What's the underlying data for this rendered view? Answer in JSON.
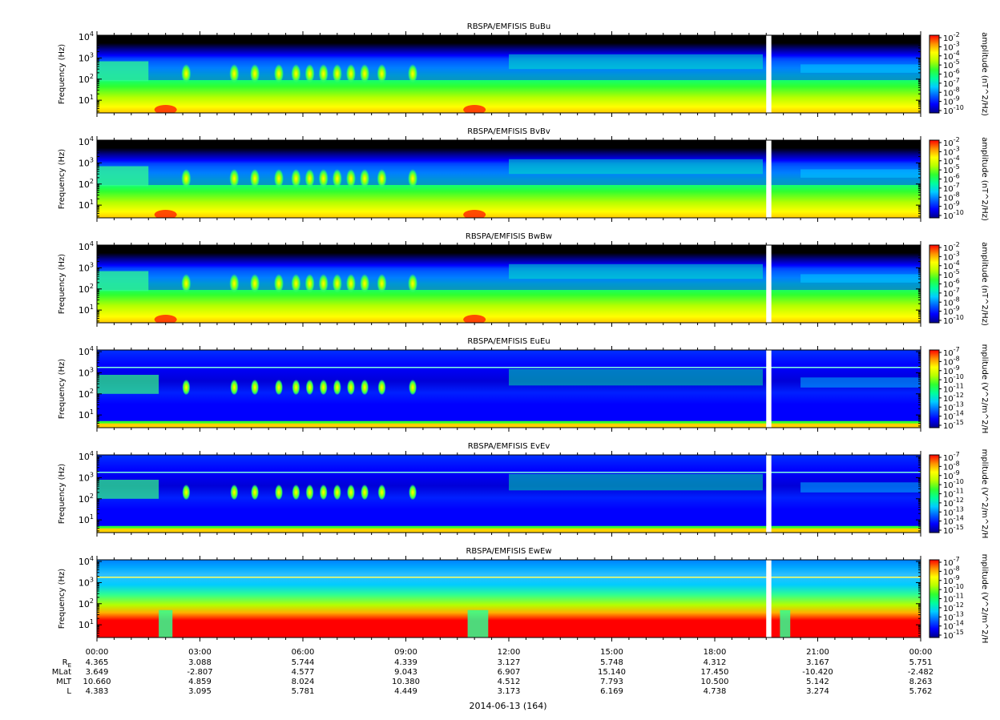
{
  "chart_data": {
    "type": "heatmap",
    "plot_type": "spectrogram",
    "x_axis": {
      "tick_labels": [
        "00:00",
        "03:00",
        "06:00",
        "09:00",
        "12:00",
        "15:00",
        "18:00",
        "21:00",
        "00:00"
      ],
      "range_hours": [
        0,
        24
      ],
      "minor_tick_step_hours": 0.5,
      "date_label": "2014-06-13 (164)"
    },
    "y_axis": {
      "label": "Frequency (Hz)",
      "scale": "log",
      "range_hz": [
        2.5,
        12000
      ],
      "tick_labels": [
        {
          "value": 10,
          "base": "10",
          "exp": "1"
        },
        {
          "value": 100,
          "base": "10",
          "exp": "2"
        },
        {
          "value": 1000,
          "base": "10",
          "exp": "3"
        },
        {
          "value": 10000,
          "base": "10",
          "exp": "4"
        }
      ]
    },
    "data_gap_hours": [
      19.5,
      19.65
    ],
    "ephemeris": {
      "rows": [
        {
          "label": "R",
          "sub": "E",
          "values": [
            "4.365",
            "3.088",
            "5.744",
            "4.339",
            "3.127",
            "5.748",
            "4.312",
            "3.167",
            "5.751"
          ]
        },
        {
          "label": "MLat",
          "sub": "",
          "values": [
            "3.649",
            "-2.807",
            "4.577",
            "9.043",
            "6.907",
            "15.140",
            "17.450",
            "-10.420",
            "-2.482"
          ]
        },
        {
          "label": "MLT",
          "sub": "",
          "values": [
            "10.660",
            "4.859",
            "8.024",
            "10.380",
            "4.512",
            "7.793",
            "10.500",
            "5.142",
            "8.263"
          ]
        },
        {
          "label": "L",
          "sub": "",
          "values": [
            "4.383",
            "3.095",
            "5.781",
            "4.449",
            "3.173",
            "6.169",
            "4.738",
            "3.274",
            "5.762"
          ]
        }
      ]
    },
    "colormap": [
      "#000000",
      "#00008a",
      "#0000ff",
      "#0060ff",
      "#00ccff",
      "#00ff9c",
      "#30ff30",
      "#b4ff00",
      "#ffff00",
      "#ff9000",
      "#ff0000"
    ],
    "panels": [
      {
        "title": "RBSPA/EMFISIS  BuBu",
        "variant": "B",
        "colorbar_label": "amplitude (nT^2/Hz)",
        "colorbar_ticks": [
          {
            "base": "10",
            "exp": "-2"
          },
          {
            "base": "10",
            "exp": "-3"
          },
          {
            "base": "10",
            "exp": "-4"
          },
          {
            "base": "10",
            "exp": "-5"
          },
          {
            "base": "10",
            "exp": "-6"
          },
          {
            "base": "10",
            "exp": "-7"
          },
          {
            "base": "10",
            "exp": "-8"
          },
          {
            "base": "10",
            "exp": "-9"
          },
          {
            "base": "10",
            "exp": "-10"
          }
        ]
      },
      {
        "title": "RBSPA/EMFISIS  BvBv",
        "variant": "B",
        "colorbar_label": "amplitude (nT^2/Hz)",
        "colorbar_ticks": [
          {
            "base": "10",
            "exp": "-2"
          },
          {
            "base": "10",
            "exp": "-3"
          },
          {
            "base": "10",
            "exp": "-4"
          },
          {
            "base": "10",
            "exp": "-5"
          },
          {
            "base": "10",
            "exp": "-6"
          },
          {
            "base": "10",
            "exp": "-7"
          },
          {
            "base": "10",
            "exp": "-8"
          },
          {
            "base": "10",
            "exp": "-9"
          },
          {
            "base": "10",
            "exp": "-10"
          }
        ]
      },
      {
        "title": "RBSPA/EMFISIS  BwBw",
        "variant": "Bw",
        "colorbar_label": "amplitude (nT^2/Hz)",
        "colorbar_ticks": [
          {
            "base": "10",
            "exp": "-2"
          },
          {
            "base": "10",
            "exp": "-3"
          },
          {
            "base": "10",
            "exp": "-4"
          },
          {
            "base": "10",
            "exp": "-5"
          },
          {
            "base": "10",
            "exp": "-6"
          },
          {
            "base": "10",
            "exp": "-7"
          },
          {
            "base": "10",
            "exp": "-8"
          },
          {
            "base": "10",
            "exp": "-9"
          },
          {
            "base": "10",
            "exp": "-10"
          }
        ]
      },
      {
        "title": "RBSPA/EMFISIS  EuEu",
        "variant": "E",
        "colorbar_label": "mplitude (V^2/m^2/H",
        "colorbar_ticks": [
          {
            "base": "10",
            "exp": "-7"
          },
          {
            "base": "10",
            "exp": "-8"
          },
          {
            "base": "10",
            "exp": "-9"
          },
          {
            "base": "10",
            "exp": "-10"
          },
          {
            "base": "10",
            "exp": "-11"
          },
          {
            "base": "10",
            "exp": "-12"
          },
          {
            "base": "10",
            "exp": "-13"
          },
          {
            "base": "10",
            "exp": "-14"
          },
          {
            "base": "10",
            "exp": "-15"
          }
        ]
      },
      {
        "title": "RBSPA/EMFISIS  EvEv",
        "variant": "E",
        "colorbar_label": "mplitude (V^2/m^2/H",
        "colorbar_ticks": [
          {
            "base": "10",
            "exp": "-7"
          },
          {
            "base": "10",
            "exp": "-8"
          },
          {
            "base": "10",
            "exp": "-9"
          },
          {
            "base": "10",
            "exp": "-10"
          },
          {
            "base": "10",
            "exp": "-11"
          },
          {
            "base": "10",
            "exp": "-12"
          },
          {
            "base": "10",
            "exp": "-13"
          },
          {
            "base": "10",
            "exp": "-14"
          },
          {
            "base": "10",
            "exp": "-15"
          }
        ]
      },
      {
        "title": "RBSPA/EMFISIS  EwEw",
        "variant": "Ew",
        "colorbar_label": "mplitude (V^2/m^2/H",
        "colorbar_ticks": [
          {
            "base": "10",
            "exp": "-7"
          },
          {
            "base": "10",
            "exp": "-8"
          },
          {
            "base": "10",
            "exp": "-9"
          },
          {
            "base": "10",
            "exp": "-10"
          },
          {
            "base": "10",
            "exp": "-11"
          },
          {
            "base": "10",
            "exp": "-12"
          },
          {
            "base": "10",
            "exp": "-13"
          },
          {
            "base": "10",
            "exp": "-14"
          },
          {
            "base": "10",
            "exp": "-15"
          }
        ]
      }
    ]
  }
}
